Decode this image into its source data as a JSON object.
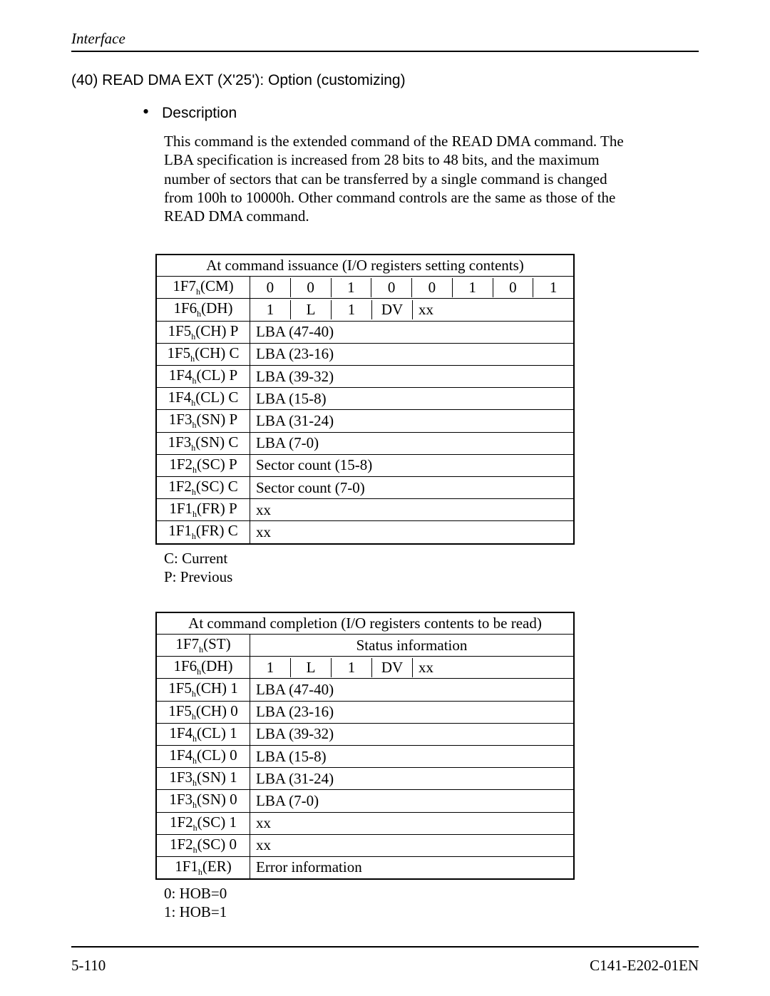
{
  "page": {
    "running_head": "Interface",
    "section_title": "(40)  READ DMA EXT (X'25'):  Option (customizing)",
    "bullet_label": "Description",
    "description": "This command is the extended command of the READ DMA command.  The LBA specification is increased from 28 bits to 48 bits, and the maximum number of sectors that can be transferred by a single command is changed from 100h to 10000h.  Other command controls are the same as those of the READ DMA command.",
    "footer_left": "5-110",
    "footer_right": "C141-E202-01EN"
  },
  "table1": {
    "title": "At command issuance (I/O registers setting contents)",
    "rows": [
      {
        "reg": [
          "1F7",
          "h",
          "(CM)"
        ],
        "cells8": [
          "0",
          "0",
          "1",
          "0",
          "0",
          "1",
          "0",
          "1"
        ]
      },
      {
        "reg": [
          "1F6",
          "h",
          "(DH)"
        ],
        "cells5": [
          "1",
          "L",
          "1",
          "DV",
          "xx"
        ]
      },
      {
        "reg": [
          "1F5",
          "h",
          "(CH) P"
        ],
        "span": "LBA (47-40)"
      },
      {
        "reg": [
          "1F5",
          "h",
          "(CH) C"
        ],
        "span": "LBA (23-16)"
      },
      {
        "reg": [
          "1F4",
          "h",
          "(CL) P"
        ],
        "span": "LBA (39-32)"
      },
      {
        "reg": [
          "1F4",
          "h",
          "(CL) C"
        ],
        "span": "LBA (15-8)"
      },
      {
        "reg": [
          "1F3",
          "h",
          "(SN) P"
        ],
        "span": "LBA (31-24)"
      },
      {
        "reg": [
          "1F3",
          "h",
          "(SN) C"
        ],
        "span": "LBA (7-0)"
      },
      {
        "reg": [
          "1F2",
          "h",
          "(SC) P"
        ],
        "span": "Sector count (15-8)"
      },
      {
        "reg": [
          "1F2",
          "h",
          "(SC) C"
        ],
        "span": "Sector count (7-0)"
      },
      {
        "reg": [
          "1F1",
          "h",
          "(FR) P"
        ],
        "span": "xx"
      },
      {
        "reg": [
          "1F1",
          "h",
          "(FR) C"
        ],
        "span": "xx"
      }
    ],
    "legend": [
      "C:  Current",
      "P:  Previous"
    ]
  },
  "table2": {
    "title": "At command completion (I/O registers contents to be read)",
    "rows": [
      {
        "reg": [
          "1F7",
          "h",
          "(ST)"
        ],
        "center": "Status information"
      },
      {
        "reg": [
          "1F6",
          "h",
          "(DH)"
        ],
        "cells5": [
          "1",
          "L",
          "1",
          "DV",
          "xx"
        ]
      },
      {
        "reg": [
          "1F5",
          "h",
          "(CH) 1"
        ],
        "span": "LBA (47-40)"
      },
      {
        "reg": [
          "1F5",
          "h",
          "(CH) 0"
        ],
        "span": "LBA (23-16)"
      },
      {
        "reg": [
          "1F4",
          "h",
          "(CL) 1"
        ],
        "span": "LBA (39-32)"
      },
      {
        "reg": [
          "1F4",
          "h",
          "(CL) 0"
        ],
        "span": "LBA (15-8)"
      },
      {
        "reg": [
          "1F3",
          "h",
          "(SN) 1"
        ],
        "span": "LBA (31-24)"
      },
      {
        "reg": [
          "1F3",
          "h",
          "(SN) 0"
        ],
        "span": "LBA (7-0)"
      },
      {
        "reg": [
          "1F2",
          "h",
          "(SC) 1"
        ],
        "span": "xx"
      },
      {
        "reg": [
          "1F2",
          "h",
          "(SC) 0"
        ],
        "span": "xx"
      },
      {
        "reg": [
          "1F1",
          "h",
          "(ER)"
        ],
        "span": "Error information"
      }
    ],
    "legend": [
      "0:  HOB=0",
      "1:  HOB=1"
    ]
  }
}
